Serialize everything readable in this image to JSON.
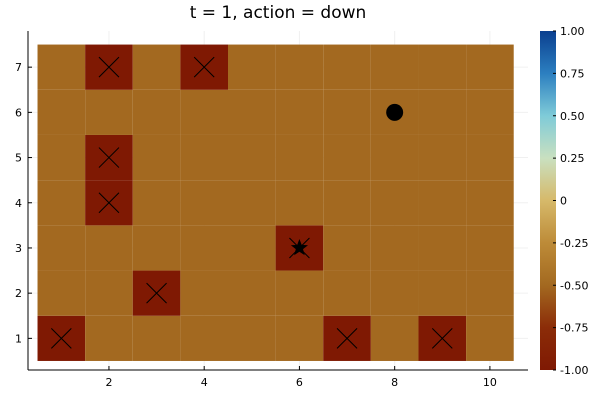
{
  "title": "t = 1, action = down",
  "chart_data": {
    "type": "heatmap",
    "title": "t = 1, action = down",
    "xlabel": "",
    "ylabel": "",
    "xlim": [
      0.3,
      10.8
    ],
    "ylim": [
      0.3,
      7.8
    ],
    "x_ticks": [
      2,
      4,
      6,
      8,
      10
    ],
    "y_ticks": [
      1,
      2,
      3,
      4,
      5,
      6,
      7
    ],
    "grid": {
      "cols": 10,
      "rows": 7
    },
    "default_value": -0.5,
    "obstacle_value": -1.0,
    "obstacles": [
      {
        "x": 2,
        "y": 7
      },
      {
        "x": 4,
        "y": 7
      },
      {
        "x": 2,
        "y": 5
      },
      {
        "x": 2,
        "y": 4
      },
      {
        "x": 6,
        "y": 3
      },
      {
        "x": 3,
        "y": 2
      },
      {
        "x": 1,
        "y": 1
      },
      {
        "x": 7,
        "y": 1
      },
      {
        "x": 9,
        "y": 1
      }
    ],
    "agent": {
      "x": 8,
      "y": 6,
      "marker": "circle"
    },
    "goal": {
      "x": 6,
      "y": 3,
      "marker": "star"
    },
    "colorbar": {
      "range": [
        -1.0,
        1.0
      ],
      "ticks": [
        -1.0,
        -0.75,
        -0.5,
        -0.25,
        0,
        0.25,
        0.5,
        0.75,
        1.0
      ],
      "tick_labels": [
        "-1.00",
        "-0.75",
        "-0.50",
        "-0.25",
        "0",
        "0.25",
        "0.50",
        "0.75",
        "1.00"
      ],
      "colormap": "earth-to-ocean"
    },
    "legend": "none"
  },
  "colors": {
    "cell_default": "#a36920",
    "cell_obstacle": "#7f1903",
    "marker": "#000000",
    "axis": "#000000",
    "gridline": "#f0f0f0"
  }
}
